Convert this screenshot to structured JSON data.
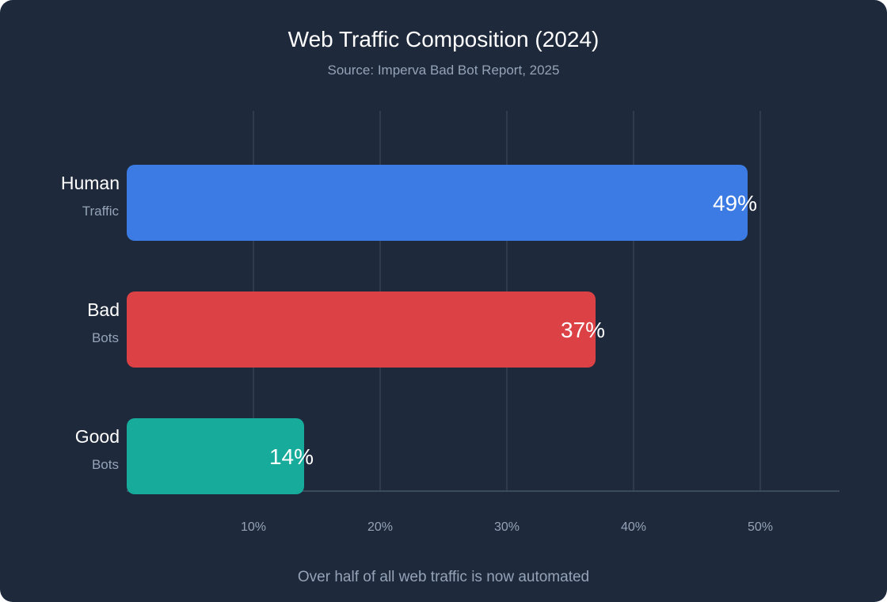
{
  "chart_data": {
    "type": "bar",
    "orientation": "horizontal",
    "title": "Web Traffic Composition (2024)",
    "subtitle": "Source: Imperva Bad Bot Report, 2025",
    "footer_note": "Over half of all web traffic is now automated",
    "categories": [
      {
        "line1": "Human",
        "line2": "Traffic"
      },
      {
        "line1": "Bad",
        "line2": "Bots"
      },
      {
        "line1": "Good",
        "line2": "Bots"
      }
    ],
    "values": [
      49,
      37,
      14
    ],
    "value_labels": [
      "49%",
      "37%",
      "14%"
    ],
    "colors": [
      "#3b7be3",
      "#dc4145",
      "#17ab9b"
    ],
    "x_ticks": [
      10,
      20,
      30,
      40,
      50
    ],
    "x_tick_labels": [
      "10%",
      "20%",
      "30%",
      "40%",
      "50%"
    ],
    "xlim": [
      0,
      56.25
    ],
    "grid": true,
    "legend": "none",
    "xlabel": "",
    "ylabel": ""
  },
  "theme": {
    "background": "#1e293b",
    "grid_color": "#334155",
    "axis_color": "#475569"
  }
}
